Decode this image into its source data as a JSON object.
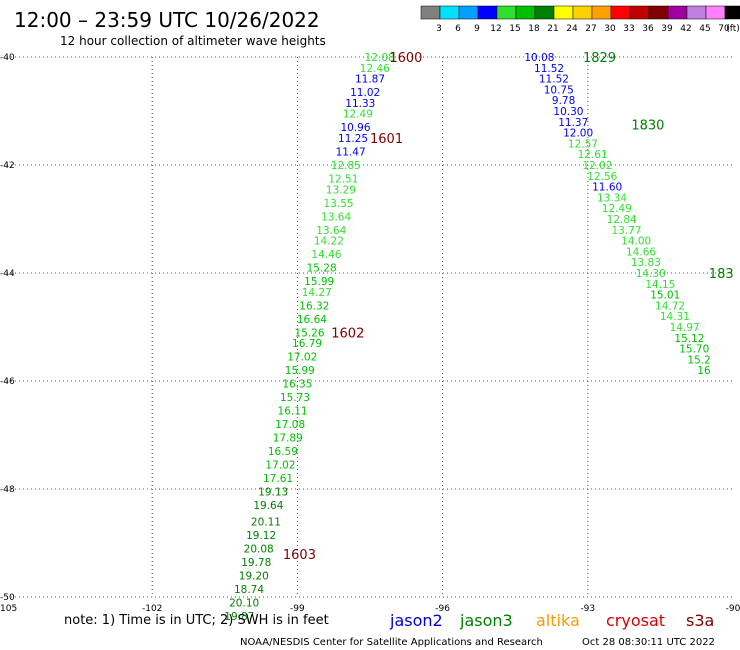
{
  "header": {
    "title": "12:00 – 23:59 UTC 10/26/2022",
    "subtitle": "12 hour collection of altimeter wave heights"
  },
  "colorbar": {
    "labels": [
      "3",
      "6",
      "9",
      "12",
      "15",
      "18",
      "21",
      "24",
      "27",
      "30",
      "33",
      "36",
      "39",
      "42",
      "45",
      "70",
      "(ft)"
    ],
    "colors": [
      "#808080",
      "#00e0ff",
      "#00a0ff",
      "#0000ff",
      "#30e030",
      "#00c000",
      "#008000",
      "#ffff00",
      "#ffd000",
      "#ffa000",
      "#ff0000",
      "#c00000",
      "#800000",
      "#a000a0",
      "#c080e0",
      "#ff80ff",
      "#000000"
    ]
  },
  "footer": {
    "note": "note: 1) Time is in UTC; 2) SWH is in feet",
    "credit": "NOAA/NESDIS Center for Satellite Applications and Research",
    "timestamp": "Oct 28 08:30:11 UTC 2022"
  },
  "chart_data": {
    "type": "scatter",
    "title": "12:00 – 23:59 UTC 10/26/2022",
    "subtitle": "12 hour collection of altimeter wave heights",
    "xlabel": "",
    "ylabel": "",
    "xlim": [
      -105,
      -90
    ],
    "ylim": [
      -50,
      -40
    ],
    "x_ticks": [
      {
        "value": -105,
        "label": "-105"
      },
      {
        "value": -102,
        "label": "-102"
      },
      {
        "value": -99,
        "label": "-99"
      },
      {
        "value": -96,
        "label": "-96"
      },
      {
        "value": -93,
        "label": "-93"
      },
      {
        "value": -90,
        "label": "-90"
      }
    ],
    "y_ticks": [
      {
        "value": -40,
        "label": "-40"
      },
      {
        "value": -42,
        "label": "-42"
      },
      {
        "value": -44,
        "label": "-44"
      },
      {
        "value": -46,
        "label": "-46"
      },
      {
        "value": -48,
        "label": "-48"
      },
      {
        "value": -50,
        "label": "-50"
      }
    ],
    "grid": true,
    "legend": {
      "position": "bottom-right",
      "items": [
        {
          "name": "jason2",
          "color": "#0000dd"
        },
        {
          "name": "jason3",
          "color": "#008000"
        },
        {
          "name": "altika",
          "color": "#ff9900"
        },
        {
          "name": "cryosat",
          "color": "#dd0000"
        },
        {
          "name": "s3a",
          "color": "#800000"
        }
      ]
    },
    "time_labels": [
      {
        "text": "1600",
        "x": -97.1,
        "y": -40.0,
        "color": "#800000"
      },
      {
        "text": "1601",
        "x": -97.5,
        "y": -41.5,
        "color": "#800000"
      },
      {
        "text": "1602",
        "x": -98.3,
        "y": -45.1,
        "color": "#800000"
      },
      {
        "text": "1603",
        "x": -99.3,
        "y": -49.2,
        "color": "#800000"
      },
      {
        "text": "1829",
        "x": -93.1,
        "y": -40.0,
        "color": "#008000"
      },
      {
        "text": "1830",
        "x": -92.1,
        "y": -41.25,
        "color": "#008000"
      },
      {
        "text": "183",
        "x": -90.5,
        "y": -44.0,
        "color": "#008000"
      }
    ],
    "series": [
      {
        "name": "pass-1600",
        "points": [
          {
            "x": -97.3,
            "y": -40.0,
            "v": "12.08",
            "color": "#30e030"
          },
          {
            "x": -97.4,
            "y": -40.2,
            "v": "12.46",
            "color": "#30e030"
          },
          {
            "x": -97.5,
            "y": -40.4,
            "v": "11.87",
            "color": "#0000ff"
          },
          {
            "x": -97.6,
            "y": -40.65,
            "v": "11.02",
            "color": "#0000ff"
          },
          {
            "x": -97.7,
            "y": -40.85,
            "v": "11.33",
            "color": "#0000ff"
          },
          {
            "x": -97.75,
            "y": -41.05,
            "v": "12.49",
            "color": "#30e030"
          },
          {
            "x": -97.8,
            "y": -41.3,
            "v": "10.96",
            "color": "#0000ff"
          },
          {
            "x": -97.85,
            "y": -41.5,
            "v": "11.25",
            "color": "#0000ff"
          },
          {
            "x": -97.9,
            "y": -41.75,
            "v": "11.47",
            "color": "#0000ff"
          },
          {
            "x": -98.0,
            "y": -42.0,
            "v": "12.85",
            "color": "#30e030"
          },
          {
            "x": -98.05,
            "y": -42.25,
            "v": "12.51",
            "color": "#30e030"
          },
          {
            "x": -98.1,
            "y": -42.45,
            "v": "13.29",
            "color": "#30e030"
          },
          {
            "x": -98.15,
            "y": -42.7,
            "v": "13.55",
            "color": "#30e030"
          },
          {
            "x": -98.2,
            "y": -42.95,
            "v": "13.64",
            "color": "#30e030"
          },
          {
            "x": -98.3,
            "y": -43.2,
            "v": "13.64",
            "color": "#30e030"
          },
          {
            "x": -98.35,
            "y": -43.4,
            "v": "14.22",
            "color": "#30e030"
          },
          {
            "x": -98.4,
            "y": -43.65,
            "v": "14.46",
            "color": "#30e030"
          },
          {
            "x": -98.5,
            "y": -43.9,
            "v": "15.28",
            "color": "#00c000"
          },
          {
            "x": -98.55,
            "y": -44.15,
            "v": "15.99",
            "color": "#00c000"
          },
          {
            "x": -98.6,
            "y": -44.35,
            "v": "14.27",
            "color": "#30e030"
          },
          {
            "x": -98.65,
            "y": -44.6,
            "v": "16.32",
            "color": "#00c000"
          },
          {
            "x": -98.7,
            "y": -44.85,
            "v": "16.64",
            "color": "#00c000"
          },
          {
            "x": -98.75,
            "y": -45.1,
            "v": "15.26",
            "color": "#00c000"
          },
          {
            "x": -98.8,
            "y": -45.3,
            "v": "16.79",
            "color": "#00c000"
          },
          {
            "x": -98.9,
            "y": -45.55,
            "v": "17.02",
            "color": "#00c000"
          },
          {
            "x": -98.95,
            "y": -45.8,
            "v": "15.99",
            "color": "#00c000"
          },
          {
            "x": -99.0,
            "y": -46.05,
            "v": "16.35",
            "color": "#00c000"
          },
          {
            "x": -99.05,
            "y": -46.3,
            "v": "15.73",
            "color": "#00c000"
          },
          {
            "x": -99.1,
            "y": -46.55,
            "v": "16.11",
            "color": "#00c000"
          },
          {
            "x": -99.15,
            "y": -46.8,
            "v": "17.08",
            "color": "#00c000"
          },
          {
            "x": -99.2,
            "y": -47.05,
            "v": "17.89",
            "color": "#00c000"
          },
          {
            "x": -99.3,
            "y": -47.3,
            "v": "16.59",
            "color": "#00c000"
          },
          {
            "x": -99.35,
            "y": -47.55,
            "v": "17.02",
            "color": "#00c000"
          },
          {
            "x": -99.4,
            "y": -47.8,
            "v": "17.61",
            "color": "#00c000"
          },
          {
            "x": -99.5,
            "y": -48.05,
            "v": "19.13",
            "color": "#008000"
          },
          {
            "x": -99.6,
            "y": -48.3,
            "v": "19.64",
            "color": "#008000"
          },
          {
            "x": -99.65,
            "y": -48.6,
            "v": "20.11",
            "color": "#008000"
          },
          {
            "x": -99.75,
            "y": -48.85,
            "v": "19.12",
            "color": "#008000"
          },
          {
            "x": -99.8,
            "y": -49.1,
            "v": "20.08",
            "color": "#008000"
          },
          {
            "x": -99.85,
            "y": -49.35,
            "v": "19.78",
            "color": "#008000"
          },
          {
            "x": -99.9,
            "y": -49.6,
            "v": "19.20",
            "color": "#008000"
          },
          {
            "x": -100.0,
            "y": -49.85,
            "v": "18.74",
            "color": "#008000"
          },
          {
            "x": -100.1,
            "y": -50.1,
            "v": "20.10",
            "color": "#008000"
          },
          {
            "x": -100.2,
            "y": -50.35,
            "v": "19.87",
            "color": "#008000"
          }
        ]
      },
      {
        "name": "pass-1829",
        "points": [
          {
            "x": -94.0,
            "y": -40.0,
            "v": "10.08",
            "color": "#0000ff"
          },
          {
            "x": -93.8,
            "y": -40.2,
            "v": "11.52",
            "color": "#0000ff"
          },
          {
            "x": -93.7,
            "y": -40.4,
            "v": "11.52",
            "color": "#0000ff"
          },
          {
            "x": -93.6,
            "y": -40.6,
            "v": "10.75",
            "color": "#0000ff"
          },
          {
            "x": -93.5,
            "y": -40.8,
            "v": "9.78",
            "color": "#0000ff"
          },
          {
            "x": -93.4,
            "y": -41.0,
            "v": "10.30",
            "color": "#0000ff"
          },
          {
            "x": -93.3,
            "y": -41.2,
            "v": "11.37",
            "color": "#0000ff"
          },
          {
            "x": -93.2,
            "y": -41.4,
            "v": "12.00",
            "color": "#0000ff"
          },
          {
            "x": -93.1,
            "y": -41.6,
            "v": "12.57",
            "color": "#30e030"
          },
          {
            "x": -92.9,
            "y": -41.8,
            "v": "12.61",
            "color": "#30e030"
          },
          {
            "x": -92.8,
            "y": -42.0,
            "v": "12.02",
            "color": "#30e030"
          },
          {
            "x": -92.7,
            "y": -42.2,
            "v": "12.56",
            "color": "#30e030"
          },
          {
            "x": -92.6,
            "y": -42.4,
            "v": "11.60",
            "color": "#0000ff"
          },
          {
            "x": -92.5,
            "y": -42.6,
            "v": "13.34",
            "color": "#30e030"
          },
          {
            "x": -92.4,
            "y": -42.8,
            "v": "12.49",
            "color": "#30e030"
          },
          {
            "x": -92.3,
            "y": -43.0,
            "v": "12.84",
            "color": "#30e030"
          },
          {
            "x": -92.2,
            "y": -43.2,
            "v": "13.77",
            "color": "#30e030"
          },
          {
            "x": -92.0,
            "y": -43.4,
            "v": "14.00",
            "color": "#30e030"
          },
          {
            "x": -91.9,
            "y": -43.6,
            "v": "14.66",
            "color": "#30e030"
          },
          {
            "x": -91.8,
            "y": -43.8,
            "v": "13.83",
            "color": "#30e030"
          },
          {
            "x": -91.7,
            "y": -44.0,
            "v": "14.30",
            "color": "#30e030"
          },
          {
            "x": -91.5,
            "y": -44.2,
            "v": "14.15",
            "color": "#30e030"
          },
          {
            "x": -91.4,
            "y": -44.4,
            "v": "15.01",
            "color": "#00c000"
          },
          {
            "x": -91.3,
            "y": -44.6,
            "v": "14.72",
            "color": "#30e030"
          },
          {
            "x": -91.2,
            "y": -44.8,
            "v": "14.31",
            "color": "#30e030"
          },
          {
            "x": -91.0,
            "y": -45.0,
            "v": "14.97",
            "color": "#30e030"
          },
          {
            "x": -90.9,
            "y": -45.2,
            "v": "15.12",
            "color": "#00c000"
          },
          {
            "x": -90.8,
            "y": -45.4,
            "v": "15.70",
            "color": "#00c000"
          },
          {
            "x": -90.7,
            "y": -45.6,
            "v": "15.2",
            "color": "#00c000"
          },
          {
            "x": -90.6,
            "y": -45.8,
            "v": "16",
            "color": "#00c000"
          }
        ]
      }
    ]
  }
}
